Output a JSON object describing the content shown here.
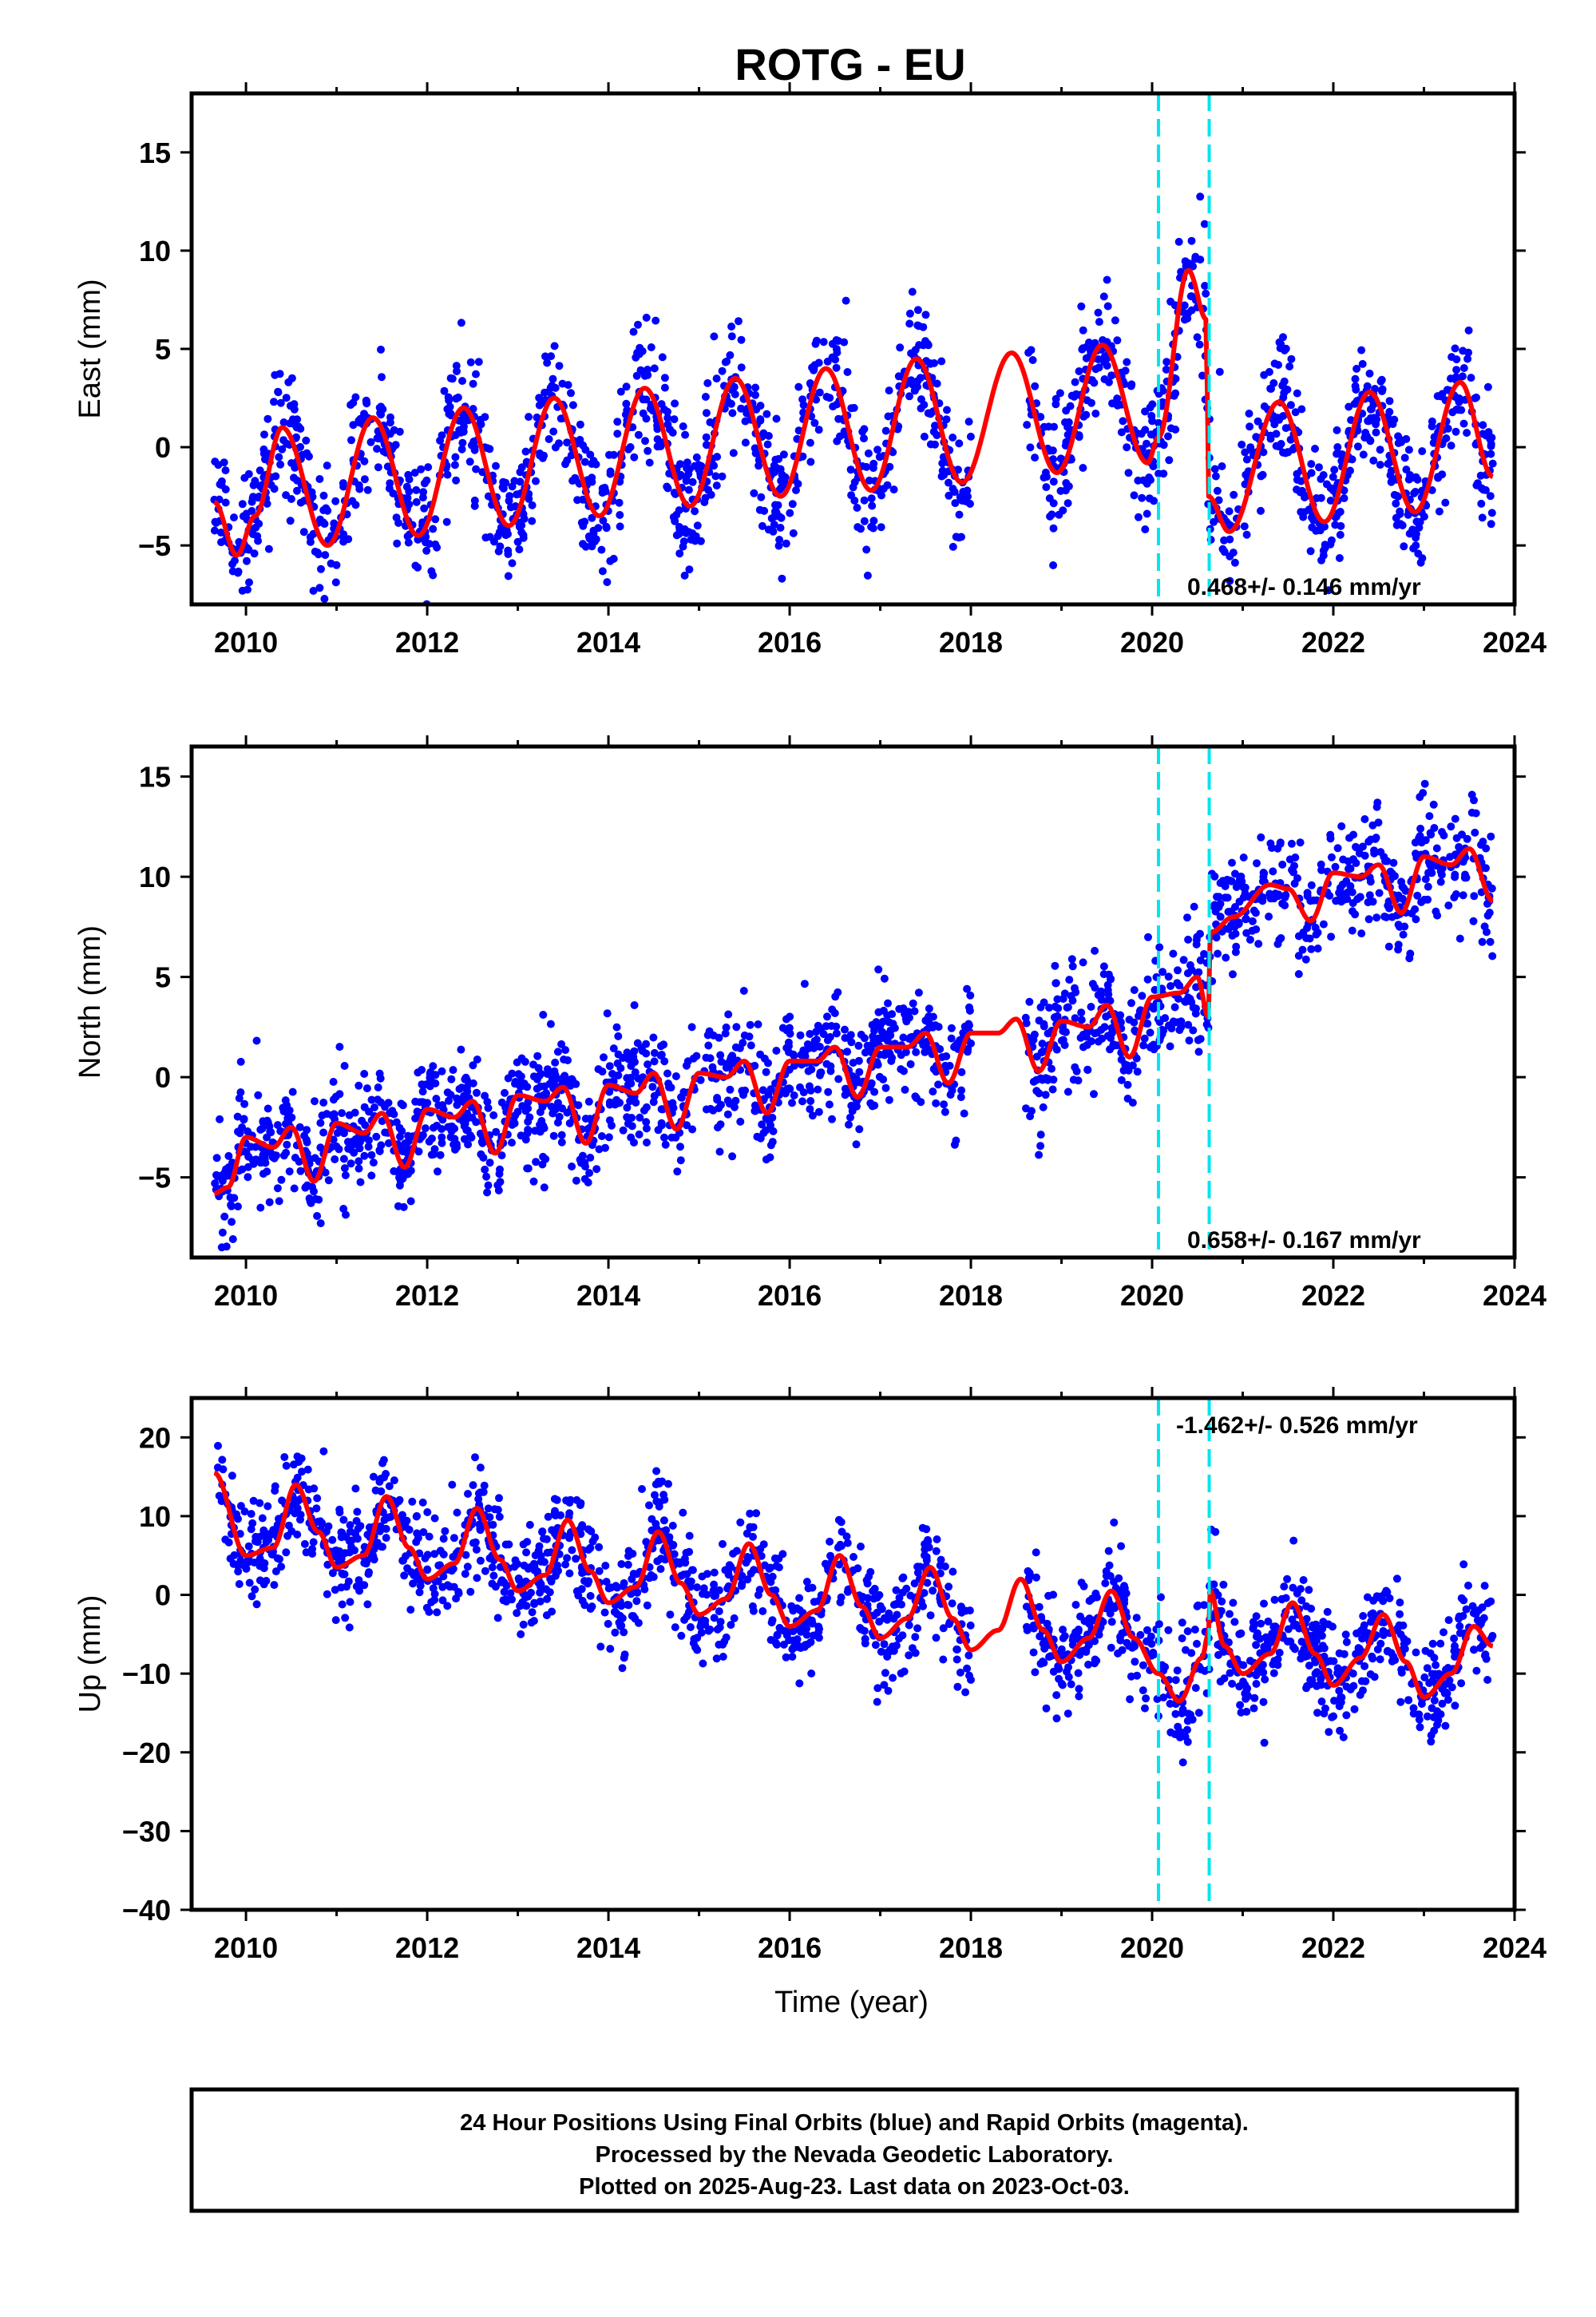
{
  "title": "ROTG - EU",
  "footer": {
    "line1": "24 Hour Positions Using Final Orbits (blue) and Rapid Orbits (magenta).",
    "line2": "Processed by the Nevada Geodetic Laboratory.",
    "line3": "Plotted on 2025-Aug-23. Last data on 2023-Oct-03."
  },
  "colors": {
    "observations": "#0000ff",
    "model": "#ff0000",
    "offset_marker": "#00e5ee",
    "frame": "#000000"
  },
  "chart_data": [
    {
      "type": "scatter",
      "ylabel": "East (mm)",
      "xlabel": "",
      "xlim": [
        2009.4,
        2024.0
      ],
      "ylim": [
        -8,
        18
      ],
      "xticks": [
        2010,
        2012,
        2014,
        2016,
        2018,
        2020,
        2022,
        2024
      ],
      "yticks": [
        -5,
        0,
        5,
        10,
        15
      ],
      "rate_label": "0.468+/- 0.146 mm/yr",
      "offset_epochs": [
        2020.07,
        2020.63
      ],
      "data_range": [
        2009.65,
        2023.76
      ],
      "data_gap": [
        2018.0,
        2018.6
      ],
      "model": {
        "x": [
          2009.65,
          2009.9,
          2010.1,
          2010.4,
          2010.9,
          2011.4,
          2011.9,
          2012.4,
          2012.9,
          2013.4,
          2013.9,
          2014.4,
          2014.9,
          2015.4,
          2015.9,
          2016.4,
          2016.9,
          2017.4,
          2017.9,
          2018.45,
          2018.95,
          2019.45,
          2019.95,
          2020.07,
          2020.4,
          2020.6,
          2020.62,
          2020.85,
          2021.4,
          2021.9,
          2022.4,
          2022.9,
          2023.4,
          2023.76
        ],
        "y": [
          -2.8,
          -5.5,
          -3.5,
          1.0,
          -5.0,
          1.5,
          -4.5,
          2.0,
          -4.0,
          2.5,
          -3.5,
          3.0,
          -3.0,
          3.5,
          -2.5,
          4.0,
          -2.2,
          4.5,
          -1.8,
          4.8,
          -1.3,
          5.2,
          -0.8,
          0.5,
          9.0,
          6.5,
          -2.5,
          -4.3,
          2.3,
          -3.8,
          2.8,
          -3.3,
          3.3,
          -1.5
        ]
      },
      "scatter": {
        "noise": 1.6,
        "points": 1900,
        "seed": 11
      }
    },
    {
      "type": "scatter",
      "ylabel": "North (mm)",
      "xlabel": "",
      "xlim": [
        2009.4,
        2024.0
      ],
      "ylim": [
        -9,
        16.5
      ],
      "xticks": [
        2010,
        2012,
        2014,
        2016,
        2018,
        2020,
        2022,
        2024
      ],
      "yticks": [
        -5,
        0,
        5,
        10,
        15
      ],
      "rate_label": "0.658+/- 0.167 mm/yr",
      "offset_epochs": [
        2020.07,
        2020.63
      ],
      "data_range": [
        2009.65,
        2023.76
      ],
      "data_gap": [
        2018.0,
        2018.6
      ],
      "model": {
        "x": [
          2009.65,
          2009.8,
          2010.0,
          2010.3,
          2010.5,
          2010.75,
          2011.0,
          2011.3,
          2011.5,
          2011.75,
          2012.0,
          2012.3,
          2012.5,
          2012.75,
          2013.0,
          2013.3,
          2013.5,
          2013.75,
          2014.0,
          2014.3,
          2014.5,
          2014.75,
          2015.0,
          2015.3,
          2015.5,
          2015.75,
          2016.0,
          2016.3,
          2016.5,
          2016.75,
          2017.0,
          2017.3,
          2017.5,
          2017.75,
          2018.0,
          2018.3,
          2018.5,
          2018.75,
          2019.0,
          2019.3,
          2019.5,
          2019.75,
          2020.0,
          2020.3,
          2020.5,
          2020.62,
          2020.64,
          2020.9,
          2021.3,
          2021.5,
          2021.75,
          2022.0,
          2022.3,
          2022.5,
          2022.75,
          2023.0,
          2023.3,
          2023.5,
          2023.76
        ],
        "y": [
          -5.8,
          -5.5,
          -3.0,
          -3.5,
          -2.5,
          -5.2,
          -2.3,
          -2.8,
          -1.8,
          -4.5,
          -1.6,
          -2.0,
          -1.2,
          -3.8,
          -0.9,
          -1.2,
          -0.5,
          -3.3,
          -0.4,
          -0.8,
          0.2,
          -2.6,
          0.2,
          0.0,
          0.8,
          -1.8,
          0.8,
          0.8,
          1.5,
          -1.0,
          1.5,
          1.5,
          2.2,
          -0.3,
          2.2,
          2.2,
          2.9,
          0.3,
          2.8,
          2.5,
          3.6,
          1.0,
          4.0,
          4.2,
          5.0,
          3.0,
          7.2,
          8.0,
          9.6,
          9.4,
          7.8,
          10.2,
          10.0,
          10.6,
          8.2,
          11.0,
          10.6,
          11.4,
          8.8
        ]
      },
      "scatter": {
        "noise": 1.4,
        "points": 1900,
        "seed": 23
      }
    },
    {
      "type": "scatter",
      "ylabel": "Up (mm)",
      "xlabel": "Time (year)",
      "xlim": [
        2009.4,
        2024.0
      ],
      "ylim": [
        -40,
        25
      ],
      "xticks": [
        2010,
        2012,
        2014,
        2016,
        2018,
        2020,
        2022,
        2024
      ],
      "yticks": [
        -40,
        -30,
        -20,
        -10,
        0,
        10,
        20
      ],
      "rate_label": "-1.462+/- 0.526 mm/yr",
      "offset_epochs": [
        2020.07,
        2020.63
      ],
      "data_range": [
        2009.65,
        2023.76
      ],
      "data_gap": [
        2018.0,
        2018.6
      ],
      "model": {
        "x": [
          2009.65,
          2010.0,
          2010.3,
          2010.55,
          2010.8,
          2011.0,
          2011.3,
          2011.55,
          2011.8,
          2012.0,
          2012.3,
          2012.55,
          2012.8,
          2013.0,
          2013.3,
          2013.55,
          2013.8,
          2014.0,
          2014.3,
          2014.55,
          2014.8,
          2015.0,
          2015.3,
          2015.55,
          2015.8,
          2016.0,
          2016.3,
          2016.55,
          2016.8,
          2017.0,
          2017.3,
          2017.55,
          2017.8,
          2018.0,
          2018.3,
          2018.55,
          2018.8,
          2019.0,
          2019.3,
          2019.55,
          2019.8,
          2020.07,
          2020.3,
          2020.55,
          2020.62,
          2020.64,
          2020.8,
          2021.0,
          2021.3,
          2021.55,
          2021.8,
          2022.0,
          2022.3,
          2022.55,
          2022.8,
          2023.0,
          2023.3,
          2023.55,
          2023.76
        ],
        "y": [
          15.5,
          5.0,
          6.0,
          14.0,
          8.0,
          3.5,
          5.0,
          12.5,
          6.0,
          2.0,
          4.0,
          11.0,
          4.5,
          0.5,
          2.5,
          9.5,
          3.0,
          -1.0,
          1.0,
          8.0,
          1.5,
          -2.5,
          -0.5,
          6.5,
          0.0,
          -4.0,
          -2.0,
          5.0,
          -1.5,
          -5.5,
          -3.0,
          3.5,
          -3.0,
          -7.0,
          -4.5,
          2.0,
          -4.5,
          -8.5,
          -5.5,
          0.5,
          -5.5,
          -10.0,
          -13.5,
          -8.0,
          -5.0,
          0.5,
          -6.5,
          -10.0,
          -7.5,
          -1.0,
          -7.5,
          -11.5,
          -8.0,
          -2.5,
          -8.5,
          -13.0,
          -10.0,
          -4.0,
          -6.5
        ]
      },
      "scatter": {
        "noise": 3.3,
        "points": 1900,
        "seed": 37
      }
    }
  ]
}
